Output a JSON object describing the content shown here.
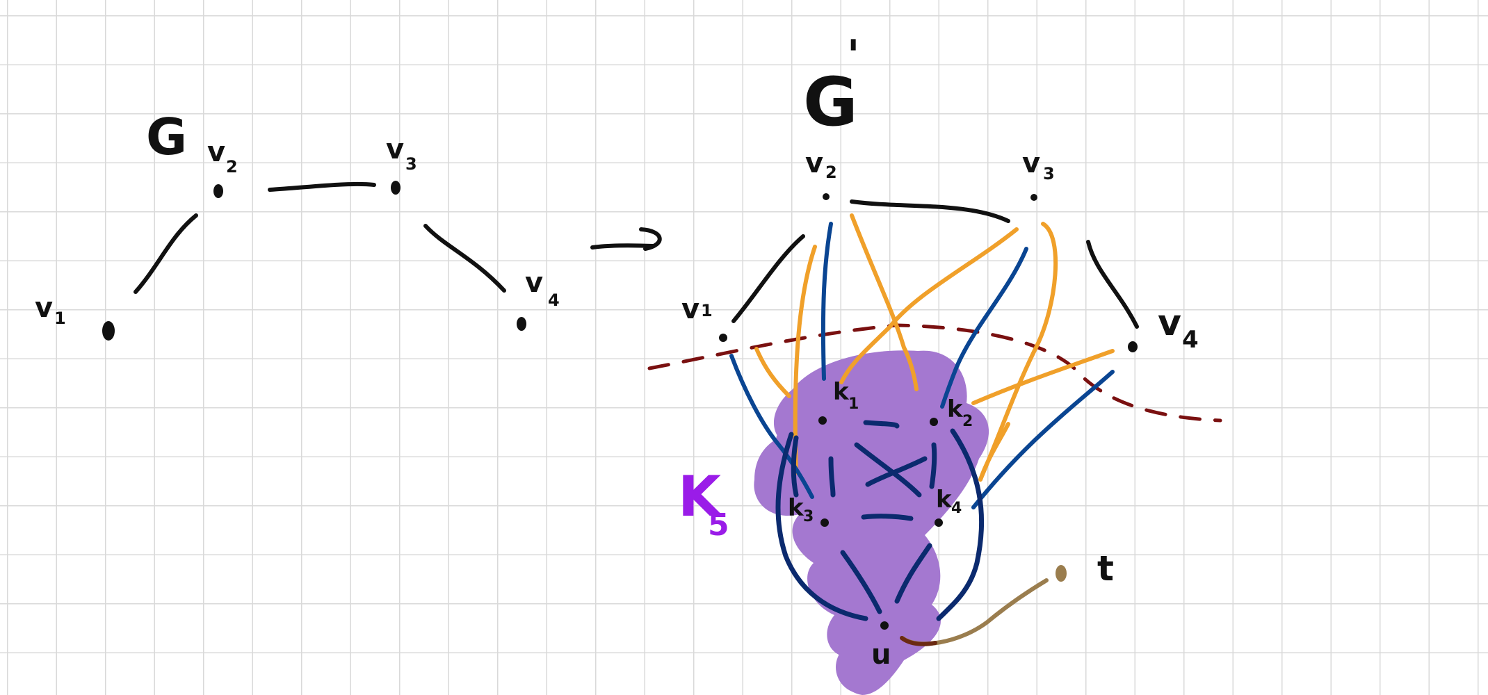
{
  "colors": {
    "ink": "#111111",
    "blob": "#a478d0",
    "orange": "#f0a02a",
    "blue": "#0a4592",
    "dark_blue": "#0b2a6e",
    "dashed_red": "#7a1010",
    "k5_label": "#9a1ce8",
    "t_edge": "#9a7d4e",
    "grid": "#d9d9d9"
  },
  "graph_g": {
    "title": "G",
    "v1": {
      "letter": "v",
      "sub": "1"
    },
    "v2": {
      "letter": "v",
      "sub": "2"
    },
    "v3": {
      "letter": "v",
      "sub": "3"
    },
    "v4": {
      "letter": "v",
      "sub": "4"
    }
  },
  "arrow": "→",
  "graph_gp": {
    "title": "G",
    "prime": "'",
    "v1": {
      "letter": "v",
      "sub": "1"
    },
    "v2": {
      "letter": "v",
      "sub": "2"
    },
    "v3": {
      "letter": "v",
      "sub": "3"
    },
    "v4": {
      "letter": "v",
      "sub": "4"
    },
    "k1": {
      "letter": "k",
      "sub": "1"
    },
    "k2": {
      "letter": "k",
      "sub": "2"
    },
    "k3": {
      "letter": "k",
      "sub": "3"
    },
    "k4": {
      "letter": "k",
      "sub": "4"
    },
    "k5_label": {
      "letter": "K",
      "sub": "5"
    },
    "u": "u",
    "t": "t"
  }
}
